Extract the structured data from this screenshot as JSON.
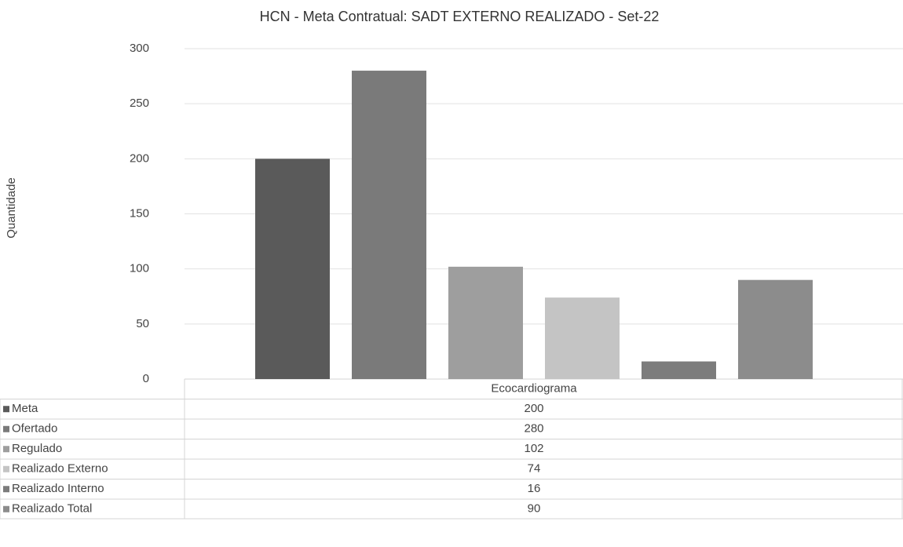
{
  "chart_data": {
    "type": "bar",
    "title": "HCN - Meta Contratual: SADT EXTERNO REALIZADO - Set-22",
    "y_label": "Quantidade",
    "categories": [
      "Ecocardiograma"
    ],
    "series": [
      {
        "name": "Meta",
        "color": "#5a5a5a",
        "values": [
          200
        ]
      },
      {
        "name": "Ofertado",
        "color": "#7a7a7a",
        "values": [
          280
        ]
      },
      {
        "name": "Regulado",
        "color": "#9e9e9e",
        "values": [
          102
        ]
      },
      {
        "name": "Realizado Externo",
        "color": "#c4c4c4",
        "values": [
          74
        ]
      },
      {
        "name": "Realizado Interno",
        "color": "#7c7c7c",
        "values": [
          16
        ]
      },
      {
        "name": "Realizado Total",
        "color": "#8c8c8c",
        "values": [
          90
        ]
      }
    ],
    "ylim": [
      0,
      300
    ],
    "yticks": [
      0,
      50,
      100,
      150,
      200,
      250,
      300
    ],
    "grid": true
  }
}
